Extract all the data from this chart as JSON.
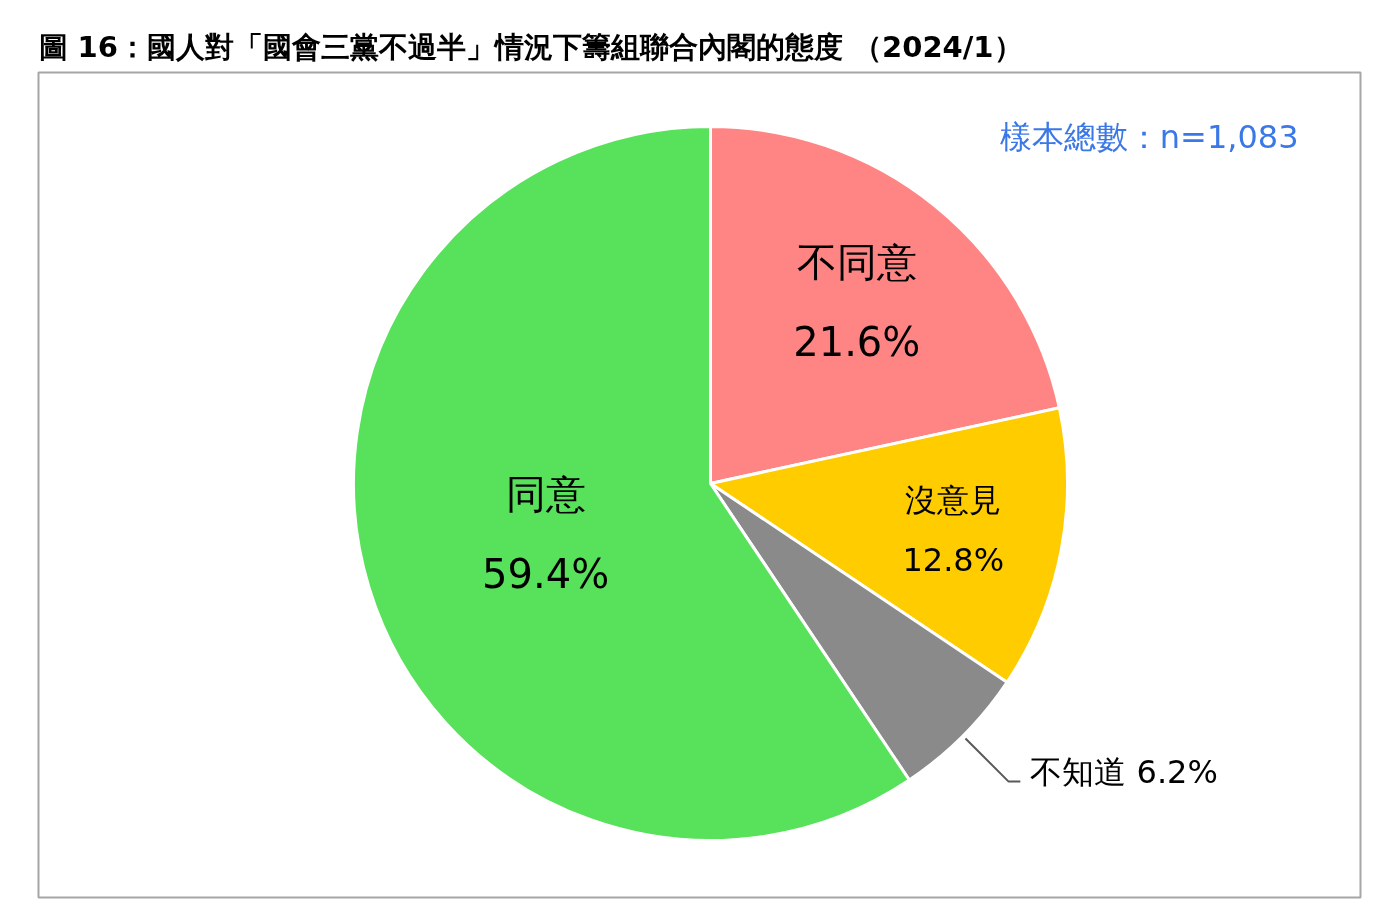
{
  "chart_data": {
    "type": "pie",
    "title": "圖 16：國人對「國會三黨不過半」情況下籌組聯合內閣的態度 （2024/1）",
    "annotations": [
      "樣本總數：n=1,083"
    ],
    "categories": [
      "不同意",
      "沒意見",
      "不知道",
      "同意"
    ],
    "values": [
      21.6,
      12.8,
      6.2,
      59.4
    ],
    "colors": [
      "#ff8585",
      "#ffcc00",
      "#8a8a8a",
      "#58e15a"
    ],
    "value_labels": [
      "21.6%",
      "12.8%",
      "6.2%",
      "59.4%"
    ]
  }
}
